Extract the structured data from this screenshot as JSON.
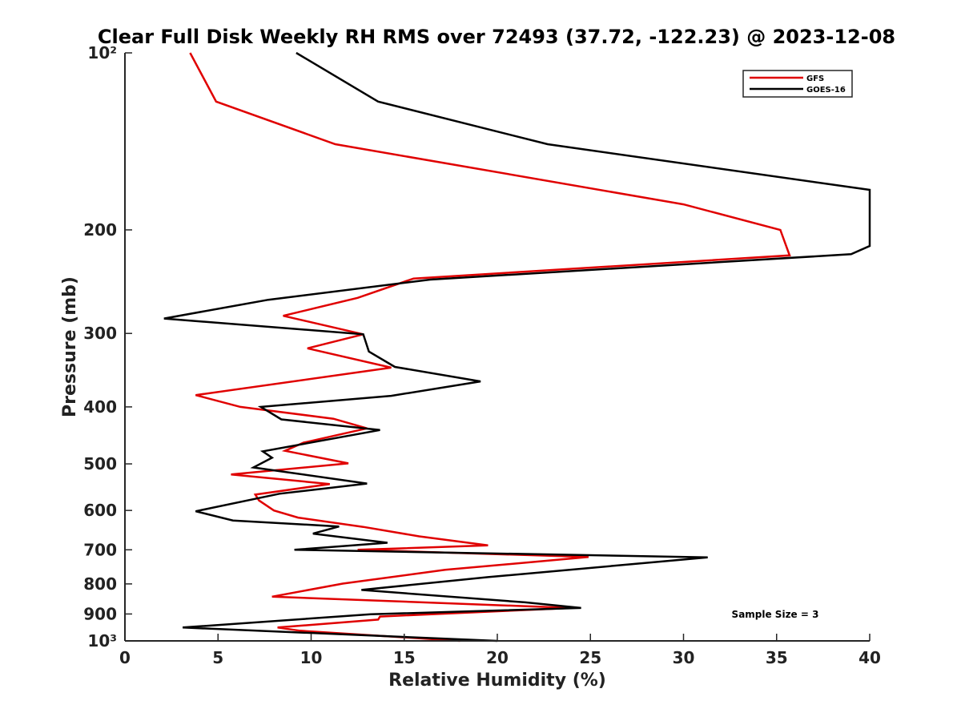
{
  "chart_data": {
    "type": "line",
    "title": "Clear Full Disk Weekly RH RMS over 72493 (37.72, -122.23) @ 2023-12-08",
    "xlabel": "Relative Humidity (%)",
    "ylabel": "Pressure (mb)",
    "xlim": [
      0,
      40
    ],
    "ylim": [
      100,
      1000
    ],
    "yscale": "log",
    "y_reversed": true,
    "grid": false,
    "legend_position": "top-right",
    "annotation": "Sample Size = 3",
    "xticks": [
      0,
      5,
      10,
      15,
      20,
      25,
      30,
      35,
      40
    ],
    "xtick_labels": [
      "0",
      "5",
      "10",
      "15",
      "20",
      "25",
      "30",
      "35",
      "40"
    ],
    "yticks": [
      100,
      200,
      300,
      400,
      500,
      600,
      700,
      800,
      900,
      1000
    ],
    "ytick_labels": [
      "10²",
      "200",
      "300",
      "400",
      "500",
      "600",
      "700",
      "800",
      "900",
      "10³"
    ],
    "series": [
      {
        "name": "GFS",
        "color": "#e00000",
        "points": [
          [
            3.5,
            100
          ],
          [
            4.9,
            121
          ],
          [
            11.3,
            143
          ],
          [
            30.0,
            181
          ],
          [
            35.2,
            200
          ],
          [
            35.7,
            221
          ],
          [
            15.5,
            242
          ],
          [
            12.5,
            261
          ],
          [
            8.5,
            280
          ],
          [
            12.8,
            301
          ],
          [
            9.8,
            318
          ],
          [
            14.3,
            343
          ],
          [
            3.8,
            382
          ],
          [
            6.2,
            400
          ],
          [
            11.2,
            419
          ],
          [
            13.0,
            435
          ],
          [
            9.6,
            460
          ],
          [
            8.6,
            475
          ],
          [
            12.0,
            499
          ],
          [
            5.7,
            521
          ],
          [
            11.0,
            541
          ],
          [
            7.0,
            564
          ],
          [
            7.2,
            577
          ],
          [
            8.0,
            600
          ],
          [
            9.3,
            617
          ],
          [
            12.8,
            640
          ],
          [
            15.8,
            664
          ],
          [
            19.5,
            688
          ],
          [
            12.5,
            700
          ],
          [
            24.9,
            720
          ],
          [
            17.2,
            757
          ],
          [
            11.7,
            799
          ],
          [
            7.9,
            841
          ],
          [
            24.0,
            879
          ],
          [
            13.7,
            909
          ],
          [
            13.6,
            920
          ],
          [
            8.2,
            949
          ],
          [
            9.4,
            961
          ],
          [
            18.0,
            1000
          ]
        ]
      },
      {
        "name": "GOES-16",
        "color": "#000000",
        "points": [
          [
            9.2,
            100
          ],
          [
            13.6,
            121
          ],
          [
            22.7,
            143
          ],
          [
            40.0,
            171
          ],
          [
            40.0,
            213
          ],
          [
            39.0,
            220
          ],
          [
            16.4,
            243
          ],
          [
            7.7,
            263
          ],
          [
            2.1,
            283
          ],
          [
            12.8,
            301
          ],
          [
            13.1,
            322
          ],
          [
            14.5,
            342
          ],
          [
            19.1,
            362
          ],
          [
            14.3,
            383
          ],
          [
            7.3,
            400
          ],
          [
            8.4,
            420
          ],
          [
            13.7,
            438
          ],
          [
            7.4,
            476
          ],
          [
            7.9,
            488
          ],
          [
            6.9,
            507
          ],
          [
            13.0,
            540
          ],
          [
            8.3,
            562
          ],
          [
            3.8,
            602
          ],
          [
            5.8,
            624
          ],
          [
            11.5,
            639
          ],
          [
            10.1,
            657
          ],
          [
            14.1,
            681
          ],
          [
            9.1,
            700
          ],
          [
            31.3,
            721
          ],
          [
            19.5,
            779
          ],
          [
            12.7,
            819
          ],
          [
            21.5,
            860
          ],
          [
            24.5,
            879
          ],
          [
            13.2,
            901
          ],
          [
            3.1,
            949
          ],
          [
            20.0,
            1000
          ]
        ]
      }
    ]
  }
}
